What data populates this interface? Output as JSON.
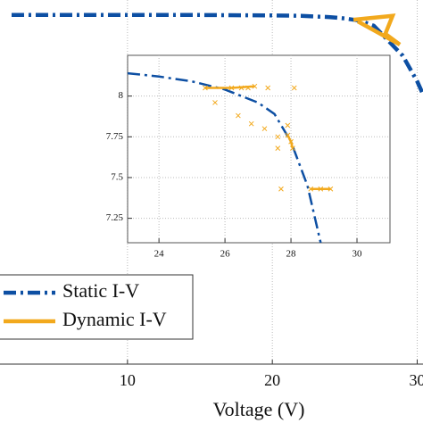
{
  "chart_data": [
    {
      "type": "line",
      "x_label": "Voltage (V)",
      "xlim": [
        1.2,
        30.4
      ],
      "ylim": [
        0,
        8.5
      ],
      "xticks": [
        10,
        20,
        30
      ],
      "grid": true,
      "legend": "lower left",
      "series": [
        {
          "name": "Static I-V",
          "color": "#0d4fa3",
          "dash": "dashdot",
          "x": [
            2,
            5,
            10,
            15,
            20,
            22,
            24,
            25,
            26,
            27,
            28,
            29,
            30,
            30.4
          ],
          "values": [
            8.15,
            8.15,
            8.15,
            8.15,
            8.14,
            8.13,
            8.1,
            8.07,
            8.02,
            7.9,
            7.55,
            7.2,
            6.6,
            6.3
          ]
        },
        {
          "name": "Dynamic I-V",
          "color": "#f2a91d",
          "dash": "solid",
          "x": [
            25.6,
            28.3,
            27.8,
            28.8,
            25.9
          ],
          "values": [
            8.04,
            8.13,
            7.71,
            7.46,
            8.0
          ]
        }
      ]
    },
    {
      "type": "line",
      "xlim": [
        23.05,
        31
      ],
      "ylim": [
        7.1,
        8.25
      ],
      "xticks": [
        24,
        26,
        28,
        30
      ],
      "yticks": [
        7.25,
        7.5,
        7.75,
        8
      ],
      "grid": true,
      "series": [
        {
          "color": "#0d4fa3",
          "dash": "dashdot",
          "x": [
            23.05,
            24,
            25,
            26,
            27,
            27.5,
            28,
            28.5,
            28.9
          ],
          "values": [
            8.14,
            8.12,
            8.09,
            8.04,
            7.96,
            7.89,
            7.72,
            7.45,
            7.1
          ]
        },
        {
          "color": "#f2a91d",
          "dash": "solid",
          "marker": "x",
          "x": [
            25.4,
            26.2,
            26.9,
            null,
            27.9,
            28.0,
            28.05,
            null,
            28.6,
            28.9,
            29.2
          ],
          "values": [
            8.05,
            8.05,
            8.06,
            null,
            7.76,
            7.72,
            7.68,
            null,
            7.43,
            7.43,
            7.43
          ]
        },
        {
          "color": "#f2a91d",
          "line": false,
          "marker": "x",
          "x": [
            26.5,
            26.7,
            27.3,
            28.1,
            25.7,
            26.4,
            26.8,
            27.2,
            27.6,
            27.6,
            27.9,
            27.7
          ],
          "values": [
            8.05,
            8.05,
            8.05,
            8.05,
            7.96,
            7.88,
            7.83,
            7.8,
            7.75,
            7.68,
            7.82,
            7.43
          ]
        }
      ]
    }
  ]
}
